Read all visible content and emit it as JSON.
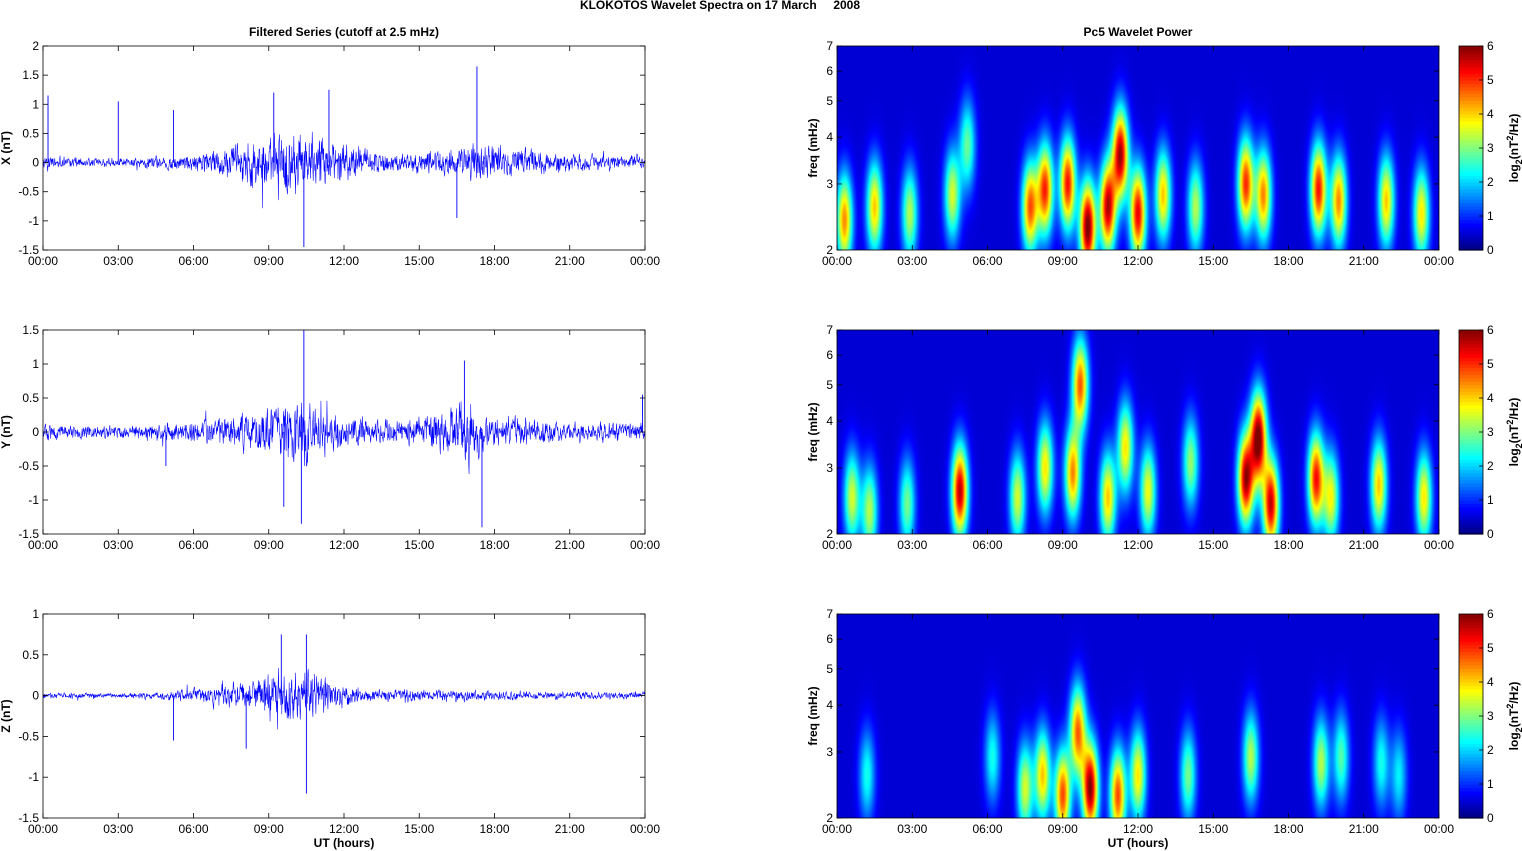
{
  "figure": {
    "title": "KLOKOTOS Wavelet Spectra on 17 March     2008"
  },
  "chart_data": [
    {
      "type": "line",
      "panel": "X",
      "title": "Filtered Series (cutoff at 2.5 mHz)",
      "xlabel": "",
      "ylabel": "X (nT)",
      "x_range_hours": [
        0,
        24
      ],
      "xtick_labels": [
        "00:00",
        "03:00",
        "06:00",
        "09:00",
        "12:00",
        "15:00",
        "18:00",
        "21:00",
        "00:00"
      ],
      "ylim": [
        -1.5,
        2
      ],
      "ytick_labels": [
        "-1.5",
        "-1",
        "-0.5",
        "0",
        "0.5",
        "1",
        "1.5",
        "2"
      ],
      "color": "#0000ff",
      "activity_envelope": [
        {
          "hour": 0,
          "amp": 0.15
        },
        {
          "hour": 2,
          "amp": 0.1
        },
        {
          "hour": 4,
          "amp": 0.12
        },
        {
          "hour": 6,
          "amp": 0.2
        },
        {
          "hour": 8,
          "amp": 0.45
        },
        {
          "hour": 9.5,
          "amp": 0.8
        },
        {
          "hour": 10.5,
          "amp": 0.75
        },
        {
          "hour": 12,
          "amp": 0.4
        },
        {
          "hour": 14,
          "amp": 0.2
        },
        {
          "hour": 16,
          "amp": 0.3
        },
        {
          "hour": 17.3,
          "amp": 0.45
        },
        {
          "hour": 19,
          "amp": 0.3
        },
        {
          "hour": 21,
          "amp": 0.2
        },
        {
          "hour": 24,
          "amp": 0.15
        }
      ],
      "peaks": [
        {
          "hour": 0.2,
          "value": 1.15
        },
        {
          "hour": 3.0,
          "value": 1.05
        },
        {
          "hour": 5.2,
          "value": 0.9
        },
        {
          "hour": 9.2,
          "value": 1.2
        },
        {
          "hour": 10.4,
          "value": -1.45
        },
        {
          "hour": 11.4,
          "value": 1.25
        },
        {
          "hour": 17.3,
          "value": 1.65
        },
        {
          "hour": 16.5,
          "value": -0.95
        }
      ]
    },
    {
      "type": "line",
      "panel": "Y",
      "title": "",
      "xlabel": "",
      "ylabel": "Y (nT)",
      "x_range_hours": [
        0,
        24
      ],
      "xtick_labels": [
        "00:00",
        "03:00",
        "06:00",
        "09:00",
        "12:00",
        "15:00",
        "18:00",
        "21:00",
        "00:00"
      ],
      "ylim": [
        -1.5,
        1.5
      ],
      "ytick_labels": [
        "-1.5",
        "-1",
        "-0.5",
        "0",
        "0.5",
        "1",
        "1.5"
      ],
      "color": "#0000ff",
      "activity_envelope": [
        {
          "hour": 0,
          "amp": 0.15
        },
        {
          "hour": 2,
          "amp": 0.12
        },
        {
          "hour": 4,
          "amp": 0.15
        },
        {
          "hour": 6,
          "amp": 0.22
        },
        {
          "hour": 8,
          "amp": 0.35
        },
        {
          "hour": 9.6,
          "amp": 0.65
        },
        {
          "hour": 10.5,
          "amp": 0.6
        },
        {
          "hour": 12,
          "amp": 0.3
        },
        {
          "hour": 14,
          "amp": 0.2
        },
        {
          "hour": 16.2,
          "amp": 0.45
        },
        {
          "hour": 16.8,
          "amp": 0.7
        },
        {
          "hour": 18,
          "amp": 0.3
        },
        {
          "hour": 21,
          "amp": 0.2
        },
        {
          "hour": 24,
          "amp": 0.18
        }
      ],
      "peaks": [
        {
          "hour": 10.4,
          "value": 1.5
        },
        {
          "hour": 10.3,
          "value": -1.35
        },
        {
          "hour": 9.6,
          "value": -1.1
        },
        {
          "hour": 16.8,
          "value": 1.05
        },
        {
          "hour": 17.5,
          "value": -1.4
        },
        {
          "hour": 4.9,
          "value": -0.5
        },
        {
          "hour": 23.9,
          "value": 0.55
        }
      ]
    },
    {
      "type": "line",
      "panel": "Z",
      "title": "",
      "xlabel": "UT (hours)",
      "ylabel": "Z (nT)",
      "x_range_hours": [
        0,
        24
      ],
      "xtick_labels": [
        "00:00",
        "03:00",
        "06:00",
        "09:00",
        "12:00",
        "15:00",
        "18:00",
        "21:00",
        "00:00"
      ],
      "ylim": [
        -1.5,
        1
      ],
      "ytick_labels": [
        "-1.5",
        "-1",
        "-0.5",
        "0",
        "0.5",
        "1"
      ],
      "color": "#0000ff",
      "activity_envelope": [
        {
          "hour": 0,
          "amp": 0.05
        },
        {
          "hour": 3,
          "amp": 0.04
        },
        {
          "hour": 5,
          "amp": 0.08
        },
        {
          "hour": 7,
          "amp": 0.15
        },
        {
          "hour": 8.5,
          "amp": 0.3
        },
        {
          "hour": 9.5,
          "amp": 0.45
        },
        {
          "hour": 10.5,
          "amp": 0.45
        },
        {
          "hour": 11.5,
          "amp": 0.25
        },
        {
          "hour": 13,
          "amp": 0.1
        },
        {
          "hour": 16,
          "amp": 0.1
        },
        {
          "hour": 18,
          "amp": 0.08
        },
        {
          "hour": 21,
          "amp": 0.06
        },
        {
          "hour": 24,
          "amp": 0.06
        }
      ],
      "peaks": [
        {
          "hour": 10.5,
          "value": -1.2
        },
        {
          "hour": 10.5,
          "value": 0.75
        },
        {
          "hour": 9.5,
          "value": 0.75
        },
        {
          "hour": 8.1,
          "value": -0.65
        },
        {
          "hour": 5.2,
          "value": -0.55
        }
      ]
    },
    {
      "type": "heatmap",
      "panel": "X",
      "title": "Pc5 Wavelet Power",
      "xlabel": "",
      "ylabel": "freq (mHz)",
      "x_range_hours": [
        0,
        24
      ],
      "xtick_labels": [
        "00:00",
        "03:00",
        "06:00",
        "09:00",
        "12:00",
        "15:00",
        "18:00",
        "21:00",
        "00:00"
      ],
      "ylim": [
        2,
        7
      ],
      "ytick_values": [
        2,
        3,
        4,
        5,
        6,
        7
      ],
      "yscale": "log",
      "colorbar": {
        "label": "log2(nT2/Hz)",
        "range": [
          0,
          6
        ],
        "tick_labels": [
          "0",
          "1",
          "2",
          "3",
          "4",
          "5",
          "6"
        ],
        "colormap": "jet"
      },
      "blobs": [
        {
          "hour": 0.3,
          "freq": 2.4,
          "power": 4.2
        },
        {
          "hour": 1.5,
          "freq": 2.6,
          "power": 3.8
        },
        {
          "hour": 2.9,
          "freq": 2.5,
          "power": 3.0
        },
        {
          "hour": 4.6,
          "freq": 2.8,
          "power": 3.2
        },
        {
          "hour": 5.2,
          "freq": 3.8,
          "power": 2.5
        },
        {
          "hour": 7.7,
          "freq": 2.6,
          "power": 4.5
        },
        {
          "hour": 8.3,
          "freq": 2.9,
          "power": 4.8
        },
        {
          "hour": 9.2,
          "freq": 3.0,
          "power": 5.0
        },
        {
          "hour": 10.0,
          "freq": 2.3,
          "power": 6.0
        },
        {
          "hour": 10.8,
          "freq": 2.6,
          "power": 5.5
        },
        {
          "hour": 11.3,
          "freq": 3.6,
          "power": 5.6
        },
        {
          "hour": 12.0,
          "freq": 2.5,
          "power": 5.2
        },
        {
          "hour": 13.0,
          "freq": 2.8,
          "power": 3.8
        },
        {
          "hour": 14.3,
          "freq": 2.6,
          "power": 3.0
        },
        {
          "hour": 16.3,
          "freq": 3.0,
          "power": 4.8
        },
        {
          "hour": 17.0,
          "freq": 2.8,
          "power": 4.2
        },
        {
          "hour": 19.2,
          "freq": 2.9,
          "power": 5.0
        },
        {
          "hour": 20.0,
          "freq": 2.7,
          "power": 4.2
        },
        {
          "hour": 21.9,
          "freq": 2.7,
          "power": 3.8
        },
        {
          "hour": 23.3,
          "freq": 2.5,
          "power": 3.6
        }
      ]
    },
    {
      "type": "heatmap",
      "panel": "Y",
      "title": "",
      "xlabel": "",
      "ylabel": "freq (mHz)",
      "x_range_hours": [
        0,
        24
      ],
      "xtick_labels": [
        "00:00",
        "03:00",
        "06:00",
        "09:00",
        "12:00",
        "15:00",
        "18:00",
        "21:00",
        "00:00"
      ],
      "ylim": [
        2,
        7
      ],
      "ytick_values": [
        2,
        3,
        4,
        5,
        6,
        7
      ],
      "yscale": "log",
      "colorbar": {
        "label": "log2(nT2/Hz)",
        "range": [
          0,
          6
        ],
        "tick_labels": [
          "0",
          "1",
          "2",
          "3",
          "4",
          "5",
          "6"
        ],
        "colormap": "jet"
      },
      "blobs": [
        {
          "hour": 0.6,
          "freq": 2.5,
          "power": 3.2
        },
        {
          "hour": 1.3,
          "freq": 2.3,
          "power": 3.0
        },
        {
          "hour": 2.8,
          "freq": 2.4,
          "power": 2.6
        },
        {
          "hour": 4.9,
          "freq": 2.6,
          "power": 5.5
        },
        {
          "hour": 7.2,
          "freq": 2.5,
          "power": 3.2
        },
        {
          "hour": 8.3,
          "freq": 3.0,
          "power": 3.6
        },
        {
          "hour": 9.4,
          "freq": 2.9,
          "power": 4.2
        },
        {
          "hour": 9.7,
          "freq": 5.0,
          "power": 4.5
        },
        {
          "hour": 10.8,
          "freq": 2.5,
          "power": 3.8
        },
        {
          "hour": 11.5,
          "freq": 3.4,
          "power": 3.6
        },
        {
          "hour": 12.4,
          "freq": 2.6,
          "power": 3.4
        },
        {
          "hour": 14.1,
          "freq": 3.1,
          "power": 2.8
        },
        {
          "hour": 16.3,
          "freq": 2.8,
          "power": 5.6
        },
        {
          "hour": 16.8,
          "freq": 3.6,
          "power": 6.0
        },
        {
          "hour": 17.3,
          "freq": 2.4,
          "power": 5.4
        },
        {
          "hour": 19.1,
          "freq": 2.8,
          "power": 5.0
        },
        {
          "hour": 19.7,
          "freq": 2.5,
          "power": 3.4
        },
        {
          "hour": 21.6,
          "freq": 2.7,
          "power": 3.8
        },
        {
          "hour": 23.4,
          "freq": 2.5,
          "power": 3.6
        }
      ]
    },
    {
      "type": "heatmap",
      "panel": "Z",
      "title": "",
      "xlabel": "UT (hours)",
      "ylabel": "freq (mHz)",
      "x_range_hours": [
        0,
        24
      ],
      "xtick_labels": [
        "00:00",
        "03:00",
        "06:00",
        "09:00",
        "12:00",
        "15:00",
        "18:00",
        "21:00",
        "00:00"
      ],
      "ylim": [
        2,
        7
      ],
      "ytick_values": [
        2,
        3,
        4,
        5,
        6,
        7
      ],
      "yscale": "log",
      "colorbar": {
        "label": "log2(nT2/Hz)",
        "range": [
          0,
          6
        ],
        "tick_labels": [
          "0",
          "1",
          "2",
          "3",
          "4",
          "5",
          "6"
        ],
        "colormap": "jet"
      },
      "blobs": [
        {
          "hour": 1.2,
          "freq": 2.6,
          "power": 2.0
        },
        {
          "hour": 6.2,
          "freq": 2.9,
          "power": 2.0
        },
        {
          "hour": 7.5,
          "freq": 2.4,
          "power": 3.2
        },
        {
          "hour": 8.2,
          "freq": 2.6,
          "power": 3.8
        },
        {
          "hour": 9.0,
          "freq": 2.3,
          "power": 4.6
        },
        {
          "hour": 9.6,
          "freq": 3.4,
          "power": 4.4
        },
        {
          "hour": 10.1,
          "freq": 2.4,
          "power": 5.8
        },
        {
          "hour": 11.2,
          "freq": 2.3,
          "power": 4.6
        },
        {
          "hour": 12.0,
          "freq": 2.6,
          "power": 3.6
        },
        {
          "hour": 14.0,
          "freq": 2.6,
          "power": 2.6
        },
        {
          "hour": 16.5,
          "freq": 2.9,
          "power": 3.0
        },
        {
          "hour": 19.3,
          "freq": 2.8,
          "power": 3.0
        },
        {
          "hour": 20.1,
          "freq": 2.9,
          "power": 2.4
        },
        {
          "hour": 21.7,
          "freq": 2.8,
          "power": 2.0
        },
        {
          "hour": 22.4,
          "freq": 2.6,
          "power": 1.8
        }
      ]
    }
  ]
}
